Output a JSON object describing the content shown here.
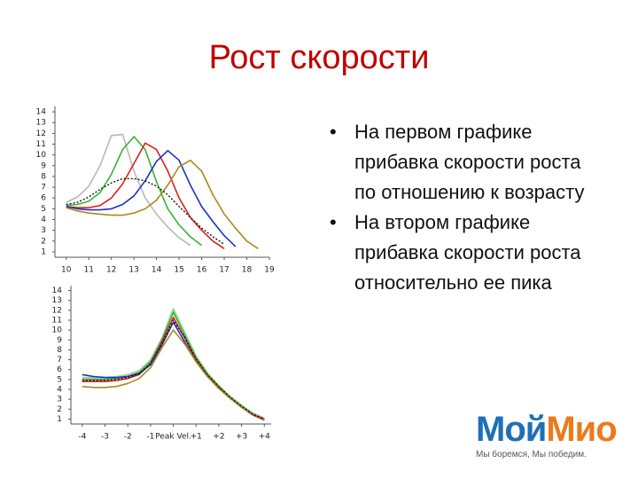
{
  "title": "Рост скорости",
  "bullets": [
    "На первом графике прибавка скорости роста по отношению  к возрасту",
    "На втором графике прибавка скорости роста относительно ее пика"
  ],
  "logo": {
    "brand_a": "Мой",
    "brand_b": "Мио",
    "tagline": "Мы боремся, Мы победим."
  },
  "chart_data": [
    {
      "type": "line",
      "x": [
        10,
        10.5,
        11,
        11.5,
        12,
        12.5,
        13,
        13.5,
        14,
        14.5,
        15,
        15.5,
        16,
        16.5,
        17,
        17.5,
        18,
        18.5
      ],
      "xlim": [
        9.5,
        19
      ],
      "xticks": [
        10,
        11,
        12,
        13,
        14,
        15,
        16,
        17,
        18,
        19
      ],
      "ylim": [
        0.5,
        14.5
      ],
      "yticks": [
        1,
        2,
        3,
        4,
        5,
        6,
        7,
        8,
        9,
        10,
        11,
        12,
        13,
        14
      ],
      "series": [
        {
          "color": "#b8b8b8",
          "values": [
            5.6,
            6.1,
            7.1,
            9,
            11.8,
            11.9,
            8.5,
            6,
            4.5,
            3.3,
            2.3,
            1.6,
            null,
            null,
            null,
            null,
            null,
            null
          ]
        },
        {
          "color": "#33b533",
          "values": [
            5.3,
            5.4,
            5.7,
            6.5,
            8.2,
            10.5,
            11.7,
            10.5,
            7.5,
            5,
            3.5,
            2.4,
            1.6,
            null,
            null,
            null,
            null,
            null
          ]
        },
        {
          "color": "#e0201b",
          "values": [
            5.2,
            5.1,
            5.1,
            5.3,
            6,
            7.3,
            9.2,
            11.1,
            10.5,
            8.5,
            6,
            4.2,
            3,
            2,
            1.3,
            null,
            null,
            null
          ]
        },
        {
          "color": "#1c2fc4",
          "values": [
            5.2,
            5,
            4.9,
            4.9,
            5,
            5.4,
            6.2,
            7.6,
            9.4,
            10.4,
            9.5,
            7.2,
            5.2,
            3.8,
            2.5,
            1.5,
            null,
            null
          ]
        },
        {
          "color": "#a88a1e",
          "values": [
            5.1,
            4.8,
            4.6,
            4.5,
            4.4,
            4.4,
            4.6,
            5,
            5.8,
            7.2,
            8.9,
            9.5,
            8.5,
            6.3,
            4.5,
            3.2,
            2,
            1.3
          ]
        },
        {
          "color": "#111111",
          "style": "dotted",
          "values": [
            5.4,
            5.6,
            6.1,
            6.8,
            7.4,
            7.8,
            7.8,
            7.6,
            7.1,
            6.3,
            5.2,
            4.2,
            3.2,
            2.4,
            1.7,
            null,
            null,
            null
          ]
        }
      ]
    },
    {
      "type": "line",
      "x": [
        -4,
        -3.5,
        -3,
        -2.5,
        -2,
        -1.5,
        -1,
        -0.5,
        0,
        0.5,
        1,
        1.5,
        2,
        2.5,
        3,
        3.5,
        4
      ],
      "xlim": [
        -4.5,
        4.3
      ],
      "xticks": [
        -4,
        -3,
        -2,
        -1,
        {
          "value": 0,
          "label": "Peak Vel."
        },
        {
          "value": 1,
          "label": "+1"
        },
        {
          "value": 2,
          "label": "+2"
        },
        {
          "value": 3,
          "label": "+3"
        },
        {
          "value": 4,
          "label": "+4"
        }
      ],
      "ylim": [
        0.5,
        14.5
      ],
      "yticks": [
        1,
        2,
        3,
        4,
        5,
        6,
        7,
        8,
        9,
        10,
        11,
        12,
        13,
        14
      ],
      "series": [
        {
          "color": "#b8b8b8",
          "values": [
            5.1,
            5.1,
            5.1,
            5.2,
            5.4,
            5.8,
            6.9,
            9.1,
            12,
            9.6,
            7.3,
            5.6,
            4.3,
            3.2,
            2.3,
            1.5,
            1.0
          ]
        },
        {
          "color": "#9ad89a",
          "values": [
            5.2,
            5.2,
            5.2,
            5.3,
            5.5,
            5.9,
            7,
            9.2,
            12.2,
            9.8,
            7.4,
            5.7,
            4.4,
            3.3,
            2.4,
            1.6,
            1.1
          ]
        },
        {
          "color": "#33b533",
          "values": [
            5.0,
            5.0,
            5.0,
            5.1,
            5.3,
            5.7,
            6.8,
            9,
            11.8,
            9.5,
            7.2,
            5.5,
            4.3,
            3.2,
            2.3,
            1.5,
            1.0
          ]
        },
        {
          "color": "#e0201b",
          "values": [
            4.8,
            4.8,
            4.8,
            4.9,
            5.1,
            5.5,
            6.6,
            8.8,
            11.3,
            9.2,
            7,
            5.4,
            4.2,
            3.1,
            2.2,
            1.4,
            0.9
          ]
        },
        {
          "color": "#1c2fc4",
          "values": [
            5.5,
            5.3,
            5.2,
            5.2,
            5.3,
            5.6,
            6.5,
            8.5,
            10.8,
            8.8,
            6.8,
            5.3,
            4.1,
            3.1,
            2.2,
            1.5,
            1.0
          ]
        },
        {
          "color": "#a88a1e",
          "values": [
            4.3,
            4.2,
            4.2,
            4.3,
            4.6,
            5.1,
            6.2,
            8.2,
            10,
            8.6,
            6.8,
            5.3,
            4.1,
            3.1,
            2.2,
            1.5,
            1.0
          ]
        },
        {
          "color": "#111111",
          "style": "dotted",
          "values": [
            4.9,
            4.9,
            4.9,
            5.0,
            5.2,
            5.6,
            6.6,
            8.6,
            11,
            9.3,
            7.1,
            5.5,
            4.3,
            3.2,
            2.3,
            1.5,
            1.0
          ]
        }
      ]
    }
  ]
}
